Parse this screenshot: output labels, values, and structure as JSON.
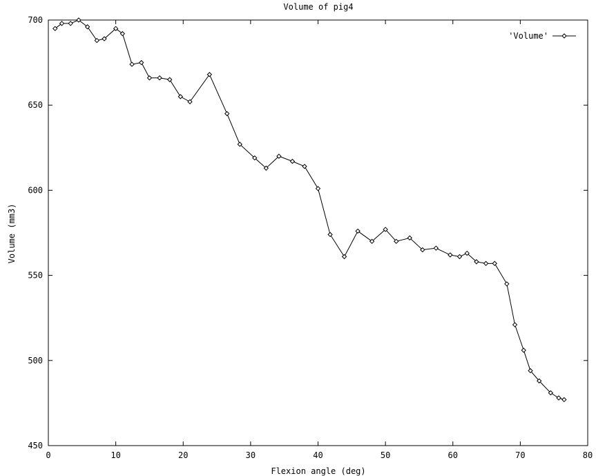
{
  "chart_data": {
    "type": "line",
    "title": "Volume of pig4",
    "xlabel": "Flexion angle (deg)",
    "ylabel": "Volume (mm3)",
    "xlim": [
      0,
      80
    ],
    "ylim": [
      450,
      700
    ],
    "xticks": [
      0,
      10,
      20,
      30,
      40,
      50,
      60,
      70,
      80
    ],
    "yticks": [
      450,
      500,
      550,
      600,
      650,
      700
    ],
    "xtick_labels": [
      "0",
      "10",
      "20",
      "30",
      "40",
      "50",
      "60",
      "70",
      "80"
    ],
    "ytick_labels": [
      "450",
      "500",
      "550",
      "600",
      "650",
      "700"
    ],
    "grid": false,
    "legend_position": "top-right",
    "series": [
      {
        "name": "'Volume'",
        "color": "#000000",
        "marker": "diamond",
        "x": [
          1.0,
          2.0,
          3.3,
          4.5,
          5.8,
          7.2,
          8.3,
          10.0,
          11.0,
          12.4,
          13.8,
          15.0,
          16.5,
          18.0,
          19.6,
          21.0,
          23.9,
          26.5,
          28.4,
          30.6,
          32.3,
          34.2,
          36.2,
          38.0,
          40.0,
          41.8,
          43.9,
          45.9,
          48.0,
          50.0,
          51.6,
          53.6,
          55.5,
          57.5,
          59.6,
          61.0,
          62.1,
          63.5,
          64.9,
          66.2,
          68.0,
          69.2,
          70.5,
          71.5,
          72.8,
          74.5,
          75.7,
          76.5
        ],
        "y": [
          695,
          698,
          698,
          700,
          696,
          688,
          689,
          695,
          692,
          674,
          675,
          666,
          666,
          665,
          655,
          652,
          668,
          645,
          627,
          619,
          613,
          620,
          617,
          614,
          601,
          574,
          561,
          576,
          570,
          577,
          570,
          572,
          565,
          566,
          562,
          561,
          563,
          558,
          557,
          557,
          545,
          521,
          506,
          494,
          488,
          481,
          478,
          477
        ]
      }
    ]
  }
}
